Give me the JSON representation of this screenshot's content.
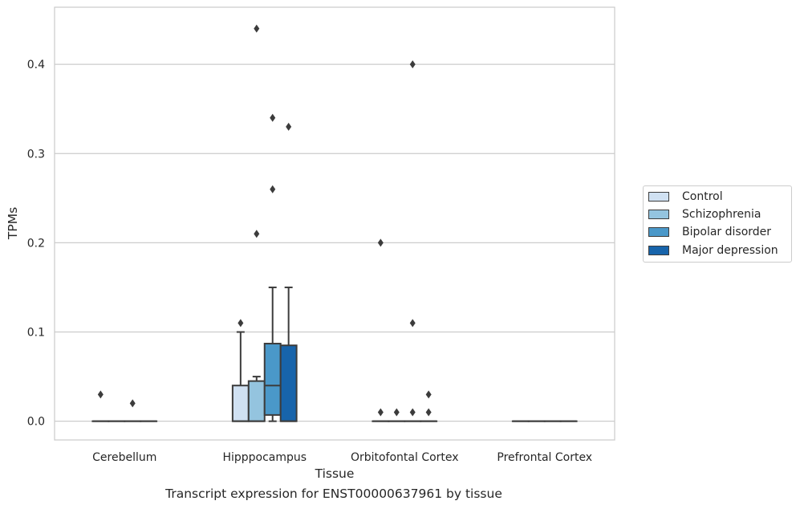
{
  "caption": "Transcript expression for ENST00000637961 by tissue",
  "chart_data": {
    "type": "box",
    "xlabel": "Tissue",
    "ylabel": "TPMs",
    "ylim": [
      -0.021,
      0.464
    ],
    "yticks": [
      0.0,
      0.1,
      0.2,
      0.3,
      0.4
    ],
    "ytick_labels": [
      "0.0",
      "0.1",
      "0.2",
      "0.3",
      "0.4"
    ],
    "grid": "horizontal",
    "legend_position": "right",
    "categories": [
      "Cerebellum",
      "Hipppocampus",
      "Orbitofontal Cortex",
      "Prefrontal Cortex"
    ],
    "series": [
      {
        "name": "Control",
        "color": "#d0e1f2",
        "boxes": [
          {
            "q1": 0,
            "median": 0,
            "q3": 0,
            "whisker_low": 0,
            "whisker_high": 0,
            "outliers": [
              0.03
            ]
          },
          {
            "q1": 0,
            "median": 0,
            "q3": 0.04,
            "whisker_low": 0,
            "whisker_high": 0.1,
            "outliers": [
              0.11
            ]
          },
          {
            "q1": 0,
            "median": 0,
            "q3": 0,
            "whisker_low": 0,
            "whisker_high": 0,
            "outliers": [
              0.2,
              0.01
            ]
          },
          {
            "q1": 0,
            "median": 0,
            "q3": 0,
            "whisker_low": 0,
            "whisker_high": 0,
            "outliers": []
          }
        ]
      },
      {
        "name": "Schizophrenia",
        "color": "#94c4df",
        "boxes": [
          {
            "q1": 0,
            "median": 0,
            "q3": 0,
            "whisker_low": 0,
            "whisker_high": 0,
            "outliers": []
          },
          {
            "q1": 0,
            "median": 0,
            "q3": 0.045,
            "whisker_low": 0,
            "whisker_high": 0.05,
            "outliers": [
              0.44,
              0.21
            ]
          },
          {
            "q1": 0,
            "median": 0,
            "q3": 0,
            "whisker_low": 0,
            "whisker_high": 0,
            "outliers": [
              0.01
            ]
          },
          {
            "q1": 0,
            "median": 0,
            "q3": 0,
            "whisker_low": 0,
            "whisker_high": 0,
            "outliers": []
          }
        ]
      },
      {
        "name": "Bipolar disorder",
        "color": "#4a98c9",
        "boxes": [
          {
            "q1": 0,
            "median": 0,
            "q3": 0,
            "whisker_low": 0,
            "whisker_high": 0,
            "outliers": [
              0.02
            ]
          },
          {
            "q1": 0.007,
            "median": 0.04,
            "q3": 0.087,
            "whisker_low": 0,
            "whisker_high": 0.15,
            "outliers": [
              0.34,
              0.26
            ]
          },
          {
            "q1": 0,
            "median": 0,
            "q3": 0,
            "whisker_low": 0,
            "whisker_high": 0,
            "outliers": [
              0.4,
              0.11,
              0.01
            ]
          },
          {
            "q1": 0,
            "median": 0,
            "q3": 0,
            "whisker_low": 0,
            "whisker_high": 0,
            "outliers": []
          }
        ]
      },
      {
        "name": "Major depression",
        "color": "#1764ab",
        "boxes": [
          {
            "q1": 0,
            "median": 0,
            "q3": 0,
            "whisker_low": 0,
            "whisker_high": 0,
            "outliers": []
          },
          {
            "q1": 0,
            "median": 0,
            "q3": 0.085,
            "whisker_low": 0,
            "whisker_high": 0.15,
            "outliers": [
              0.33
            ]
          },
          {
            "q1": 0,
            "median": 0,
            "q3": 0,
            "whisker_low": 0,
            "whisker_high": 0,
            "outliers": [
              0.03,
              0.01
            ]
          },
          {
            "q1": 0,
            "median": 0,
            "q3": 0,
            "whisker_low": 0,
            "whisker_high": 0,
            "outliers": []
          }
        ]
      }
    ]
  }
}
